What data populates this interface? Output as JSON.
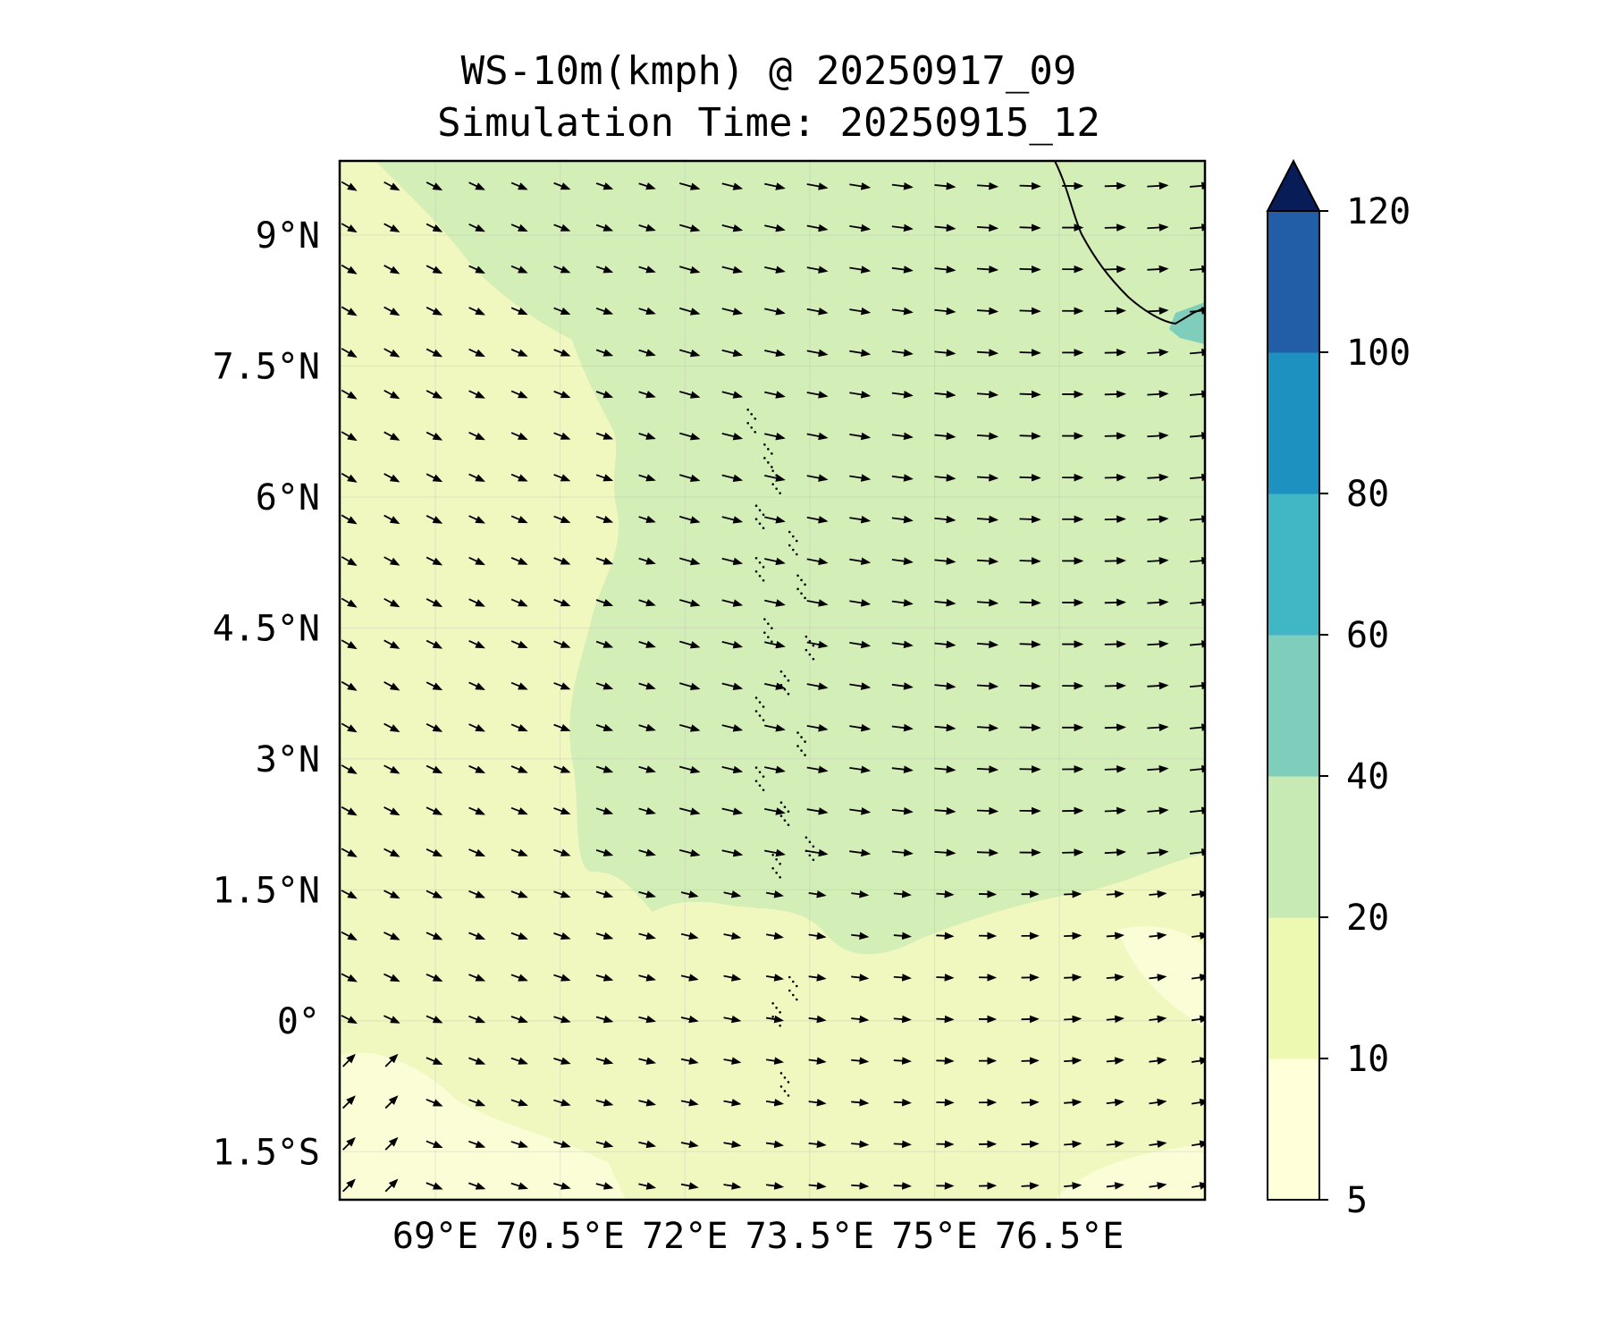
{
  "title": {
    "line1": "WS-10m(kmph) @ 20250917_09",
    "line2": "Simulation Time: 20250915_12"
  },
  "map": {
    "lon_range": [
      67.85,
      78.25
    ],
    "lat_range": [
      -2.05,
      9.85
    ],
    "lat_ticks": [
      {
        "value": 9,
        "label": "9°N"
      },
      {
        "value": 7.5,
        "label": "7.5°N"
      },
      {
        "value": 6,
        "label": "6°N"
      },
      {
        "value": 4.5,
        "label": "4.5°N"
      },
      {
        "value": 3,
        "label": "3°N"
      },
      {
        "value": 1.5,
        "label": "1.5°N"
      },
      {
        "value": 0,
        "label": "0°"
      },
      {
        "value": -1.5,
        "label": "1.5°S"
      }
    ],
    "lon_ticks": [
      {
        "value": 69,
        "label": "69°E"
      },
      {
        "value": 70.5,
        "label": "70.5°E"
      },
      {
        "value": 72,
        "label": "72°E"
      },
      {
        "value": 73.5,
        "label": "73.5°E"
      },
      {
        "value": 75,
        "label": "75°E"
      },
      {
        "value": 76.5,
        "label": "76.5°E"
      }
    ],
    "gridlines": true
  },
  "colorbar": {
    "levels": [
      5,
      10,
      20,
      40,
      60,
      80,
      100,
      120
    ],
    "labels": [
      "5",
      "10",
      "20",
      "40",
      "60",
      "80",
      "100",
      "120"
    ],
    "colors": [
      "#ffffd9",
      "#edf8b1",
      "#c7e9b4",
      "#7fcdbb",
      "#41b6c4",
      "#1d91c0",
      "#225ea8",
      "#0c2c84"
    ],
    "extend": "max",
    "extend_color": "#081d58"
  },
  "colors": {
    "field_low": "#f0f8c0",
    "field_mid": "#d3eeb6",
    "field_lowest": "#fbfdd6",
    "high_patch": "#7fcdbb"
  }
}
